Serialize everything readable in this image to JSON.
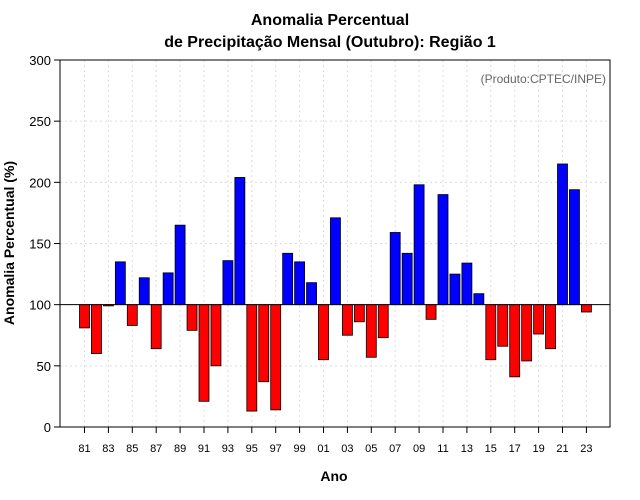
{
  "chart_data": {
    "type": "bar",
    "title_line1": "Anomalia Percentual",
    "title_line2": "de Precipitação Mensal (Outubro): Região 1",
    "xlabel": "Ano",
    "ylabel": "Anomalia Percentual (%)",
    "credit": "(Produto:CPTEC/INPE)",
    "ylim": [
      0,
      300
    ],
    "yticks": [
      "0",
      "50",
      "100",
      "150",
      "200",
      "250",
      "300"
    ],
    "baseline": 100,
    "years": [
      1981,
      1982,
      1983,
      1984,
      1985,
      1986,
      1987,
      1988,
      1989,
      1990,
      1991,
      1992,
      1993,
      1994,
      1995,
      1996,
      1997,
      1998,
      1999,
      2000,
      2001,
      2002,
      2003,
      2004,
      2005,
      2006,
      2007,
      2008,
      2009,
      2010,
      2011,
      2012,
      2013,
      2014,
      2015,
      2016,
      2017,
      2018,
      2019,
      2020,
      2021,
      2022,
      2023
    ],
    "values": [
      81,
      60,
      99,
      135,
      83,
      122,
      64,
      126,
      165,
      79,
      21,
      50,
      136,
      204,
      13,
      37,
      14,
      142,
      135,
      118,
      55,
      171,
      75,
      86,
      57,
      73,
      159,
      142,
      198,
      88,
      190,
      125,
      134,
      109,
      55,
      66,
      41,
      54,
      76,
      64,
      215,
      194,
      94
    ],
    "xtick_labels": [
      "81",
      "83",
      "85",
      "87",
      "89",
      "91",
      "93",
      "95",
      "97",
      "99",
      "01",
      "03",
      "05",
      "07",
      "09",
      "11",
      "13",
      "15",
      "17",
      "19",
      "21",
      "23"
    ],
    "xtick_years": [
      1981,
      1983,
      1985,
      1987,
      1989,
      1991,
      1993,
      1995,
      1997,
      1999,
      2001,
      2003,
      2005,
      2007,
      2009,
      2011,
      2013,
      2015,
      2017,
      2019,
      2021,
      2023
    ],
    "colors": {
      "above": "#0000ff",
      "below": "#ff0000",
      "grid": "#dddddd",
      "axis": "#000000"
    }
  }
}
